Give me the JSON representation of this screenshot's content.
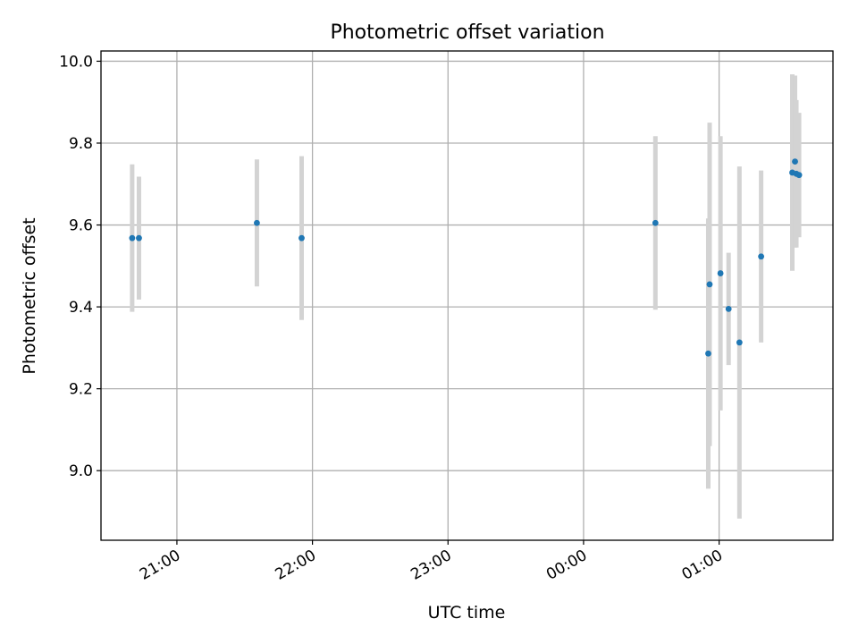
{
  "chart_data": {
    "type": "scatter",
    "title": "Photometric offset variation",
    "xlabel": "UTC time",
    "ylabel": "Photometric offset",
    "x_unit": "hours (UTC, continuous; values >= 24 fall after midnight)",
    "xlim": [
      20.44,
      25.84
    ],
    "ylim": [
      8.83,
      10.025
    ],
    "x_ticks": [
      {
        "value": 21,
        "label": "21:00"
      },
      {
        "value": 22,
        "label": "22:00"
      },
      {
        "value": 23,
        "label": "23:00"
      },
      {
        "value": 24,
        "label": "00:00"
      },
      {
        "value": 25,
        "label": "01:00"
      }
    ],
    "y_ticks": [
      {
        "value": 9.0,
        "label": "9.0"
      },
      {
        "value": 9.2,
        "label": "9.2"
      },
      {
        "value": 9.4,
        "label": "9.4"
      },
      {
        "value": 9.6,
        "label": "9.6"
      },
      {
        "value": 9.8,
        "label": "9.8"
      },
      {
        "value": 10.0,
        "label": "10.0"
      }
    ],
    "grid": true,
    "marker_color": "#1f77b4",
    "errorbar_color": "#d3d3d3",
    "points": [
      {
        "x": 20.67,
        "y": 9.568,
        "err": 0.18
      },
      {
        "x": 20.72,
        "y": 9.568,
        "err": 0.15
      },
      {
        "x": 21.59,
        "y": 9.605,
        "err": 0.155
      },
      {
        "x": 21.92,
        "y": 9.568,
        "err": 0.2
      },
      {
        "x": 24.53,
        "y": 9.605,
        "err": 0.212
      },
      {
        "x": 24.92,
        "y": 9.286,
        "err": 0.33
      },
      {
        "x": 24.93,
        "y": 9.455,
        "err": 0.395
      },
      {
        "x": 25.01,
        "y": 9.482,
        "err": 0.335
      },
      {
        "x": 25.07,
        "y": 9.395,
        "err": 0.137
      },
      {
        "x": 25.15,
        "y": 9.313,
        "err": 0.43
      },
      {
        "x": 25.31,
        "y": 9.523,
        "err": 0.21
      },
      {
        "x": 25.54,
        "y": 9.728,
        "err": 0.24
      },
      {
        "x": 25.56,
        "y": 9.755,
        "err": 0.21
      },
      {
        "x": 25.57,
        "y": 9.725,
        "err": 0.18
      },
      {
        "x": 25.59,
        "y": 9.722,
        "err": 0.152
      }
    ]
  }
}
